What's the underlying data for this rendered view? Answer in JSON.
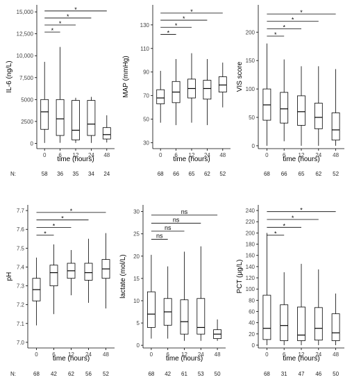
{
  "figure": {
    "n_prefix": "N:",
    "box_fill": "#ffffff",
    "line_color": "#000000"
  },
  "chart_data": [
    {
      "type": "box",
      "ylabel": "IL-6 (ng/L)",
      "xlabel": "time (hours)",
      "ylim": [
        -600,
        15800
      ],
      "yticks": [
        0,
        2500,
        5000,
        7500,
        10000,
        12500,
        15000
      ],
      "ytick_labels": [
        "0",
        "2500",
        "5000",
        "7,500",
        "10,000",
        "12,500",
        "15,000"
      ],
      "categories": [
        "0",
        "6",
        "12",
        "24",
        "48"
      ],
      "n": [
        "58",
        "36",
        "35",
        "34",
        "24"
      ],
      "boxes": [
        {
          "min": 50,
          "q1": 1600,
          "median": 3600,
          "q3": 5000,
          "max": 9300
        },
        {
          "min": 60,
          "q1": 900,
          "median": 2800,
          "q3": 5000,
          "max": 11000
        },
        {
          "min": 50,
          "q1": 400,
          "median": 1500,
          "q3": 4900,
          "max": 5200
        },
        {
          "min": 50,
          "q1": 900,
          "median": 2200,
          "q3": 4900,
          "max": 5300
        },
        {
          "min": 100,
          "q1": 500,
          "median": 1000,
          "q3": 1800,
          "max": 3200
        }
      ],
      "comparisons": [
        {
          "from": "0",
          "to": "6",
          "label": "*",
          "y": 12700
        },
        {
          "from": "0",
          "to": "12",
          "label": "*",
          "y": 13500
        },
        {
          "from": "0",
          "to": "24",
          "label": "*",
          "y": 14300
        },
        {
          "from": "0",
          "to": "48",
          "label": "*",
          "y": 15100
        }
      ]
    },
    {
      "type": "box",
      "ylabel": "MAP (mmHg)",
      "xlabel": "time (hours)",
      "ylim": [
        25,
        147
      ],
      "yticks": [
        30,
        50,
        70,
        90,
        110,
        130
      ],
      "ytick_labels": [
        "30",
        "50",
        "70",
        "90",
        "110",
        "130"
      ],
      "categories": [
        "0",
        "6",
        "12",
        "24",
        "48"
      ],
      "n": [
        "68",
        "66",
        "65",
        "62",
        "52"
      ],
      "boxes": [
        {
          "min": 47,
          "q1": 63,
          "median": 68,
          "q3": 75,
          "max": 91
        },
        {
          "min": 45,
          "q1": 64,
          "median": 73,
          "q3": 82,
          "max": 101
        },
        {
          "min": 47,
          "q1": 68,
          "median": 76,
          "q3": 84,
          "max": 106
        },
        {
          "min": 45,
          "q1": 67,
          "median": 76,
          "q3": 83,
          "max": 101
        },
        {
          "min": 60,
          "q1": 73,
          "median": 79,
          "q3": 86,
          "max": 98
        }
      ],
      "comparisons": [
        {
          "from": "0",
          "to": "6",
          "label": "*",
          "y": 122
        },
        {
          "from": "0",
          "to": "12",
          "label": "*",
          "y": 128
        },
        {
          "from": "0",
          "to": "24",
          "label": "*",
          "y": 134
        },
        {
          "from": "0",
          "to": "48",
          "label": "*",
          "y": 140
        }
      ]
    },
    {
      "type": "box",
      "ylabel": "VIS score",
      "xlabel": "time (hours)",
      "ylim": [
        -5,
        248
      ],
      "yticks": [
        0,
        50,
        100,
        150,
        200
      ],
      "ytick_labels": [
        "0",
        "50",
        "100",
        "150",
        "200"
      ],
      "categories": [
        "0",
        "6",
        "12",
        "24",
        "48"
      ],
      "n": [
        "68",
        "66",
        "65",
        "62",
        "52"
      ],
      "boxes": [
        {
          "min": 0,
          "q1": 45,
          "median": 72,
          "q3": 100,
          "max": 180
        },
        {
          "min": 8,
          "q1": 40,
          "median": 65,
          "q3": 94,
          "max": 152
        },
        {
          "min": 0,
          "q1": 36,
          "median": 60,
          "q3": 88,
          "max": 140
        },
        {
          "min": 0,
          "q1": 30,
          "median": 50,
          "q3": 75,
          "max": 140
        },
        {
          "min": 0,
          "q1": 10,
          "median": 28,
          "q3": 58,
          "max": 135
        }
      ],
      "comparisons": [
        {
          "from": "0",
          "to": "6",
          "label": "*",
          "y": 193
        },
        {
          "from": "0",
          "to": "12",
          "label": "*",
          "y": 206
        },
        {
          "from": "0",
          "to": "24",
          "label": "*",
          "y": 219
        },
        {
          "from": "0",
          "to": "48",
          "label": "*",
          "y": 232
        }
      ]
    },
    {
      "type": "box",
      "ylabel": "pH",
      "xlabel": "time (hours)",
      "ylim": [
        6.97,
        7.73
      ],
      "yticks": [
        7.0,
        7.1,
        7.2,
        7.3,
        7.4,
        7.5,
        7.6,
        7.7
      ],
      "ytick_labels": [
        "7.0",
        "7.1",
        "7.2",
        "7.3",
        "7.4",
        "7.5",
        "7.6",
        "7.7"
      ],
      "categories": [
        "0",
        "6",
        "12",
        "24",
        "48"
      ],
      "n": [
        "68",
        "42",
        "62",
        "56",
        "52"
      ],
      "boxes": [
        {
          "min": 7.09,
          "q1": 7.22,
          "median": 7.28,
          "q3": 7.34,
          "max": 7.45
        },
        {
          "min": 7.15,
          "q1": 7.3,
          "median": 7.37,
          "q3": 7.41,
          "max": 7.52
        },
        {
          "min": 7.25,
          "q1": 7.34,
          "median": 7.38,
          "q3": 7.42,
          "max": 7.49
        },
        {
          "min": 7.21,
          "q1": 7.33,
          "median": 7.37,
          "q3": 7.42,
          "max": 7.55
        },
        {
          "min": 7.18,
          "q1": 7.34,
          "median": 7.39,
          "q3": 7.44,
          "max": 7.58
        }
      ],
      "comparisons": [
        {
          "from": "0",
          "to": "6",
          "label": "*",
          "y": 7.57
        },
        {
          "from": "0",
          "to": "12",
          "label": "*",
          "y": 7.61
        },
        {
          "from": "0",
          "to": "24",
          "label": "*",
          "y": 7.65
        },
        {
          "from": "0",
          "to": "48",
          "label": "*",
          "y": 7.69
        }
      ]
    },
    {
      "type": "box",
      "ylabel": "lactate (mol/L)",
      "xlabel": "time (hours)",
      "ylim": [
        -0.6,
        31.5
      ],
      "yticks": [
        0,
        5,
        10,
        15,
        20,
        25,
        30
      ],
      "ytick_labels": [
        "0",
        "5",
        "10",
        "15",
        "20",
        "25",
        "30"
      ],
      "categories": [
        "0",
        "6",
        "12",
        "24",
        "48"
      ],
      "n": [
        "68",
        "42",
        "61",
        "53",
        "50"
      ],
      "boxes": [
        {
          "min": 1.5,
          "q1": 4.0,
          "median": 7.0,
          "q3": 12.0,
          "max": 20.3
        },
        {
          "min": 1.5,
          "q1": 4.5,
          "median": 7.5,
          "q3": 10.5,
          "max": 17.7
        },
        {
          "min": 1.0,
          "q1": 2.5,
          "median": 5.3,
          "q3": 10.2,
          "max": 21.0
        },
        {
          "min": 1.0,
          "q1": 2.5,
          "median": 4.0,
          "q3": 10.5,
          "max": 22.2
        },
        {
          "min": 1.0,
          "q1": 1.5,
          "median": 2.5,
          "q3": 3.5,
          "max": 5.8
        }
      ],
      "comparisons": [
        {
          "from": "0",
          "to": "6",
          "label": "ns",
          "y": 23.8
        },
        {
          "from": "0",
          "to": "12",
          "label": "ns",
          "y": 25.6
        },
        {
          "from": "0",
          "to": "24",
          "label": "ns",
          "y": 27.4
        },
        {
          "from": "0",
          "to": "48",
          "label": "ns",
          "y": 29.2
        }
      ]
    },
    {
      "type": "box",
      "ylabel": "PCT (µg/L)",
      "xlabel": "time (hours)",
      "ylim": [
        -5,
        250
      ],
      "yticks": [
        0,
        20,
        40,
        60,
        80,
        100,
        120,
        140,
        160,
        180,
        200,
        220,
        240
      ],
      "ytick_labels": [
        "0",
        "20",
        "40",
        "60",
        "80",
        "100",
        "120",
        "140",
        "160",
        "180",
        "200",
        "220",
        "240"
      ],
      "categories": [
        "0",
        "6",
        "12",
        "24",
        "48"
      ],
      "n": [
        "68",
        "31",
        "47",
        "46",
        "50"
      ],
      "boxes": [
        {
          "min": 0,
          "q1": 10,
          "median": 30,
          "q3": 89,
          "max": 200
        },
        {
          "min": 0,
          "q1": 8,
          "median": 35,
          "q3": 72,
          "max": 130
        },
        {
          "min": 0,
          "q1": 8,
          "median": 18,
          "q3": 68,
          "max": 145
        },
        {
          "min": 0,
          "q1": 9,
          "median": 30,
          "q3": 67,
          "max": 135
        },
        {
          "min": 0,
          "q1": 8,
          "median": 22,
          "q3": 56,
          "max": 92
        }
      ],
      "comparisons": [
        {
          "from": "0",
          "to": "6",
          "label": "*",
          "y": 196
        },
        {
          "from": "0",
          "to": "12",
          "label": "*",
          "y": 210
        },
        {
          "from": "0",
          "to": "24",
          "label": "*",
          "y": 224
        },
        {
          "from": "0",
          "to": "48",
          "label": "*",
          "y": 238
        }
      ]
    }
  ]
}
